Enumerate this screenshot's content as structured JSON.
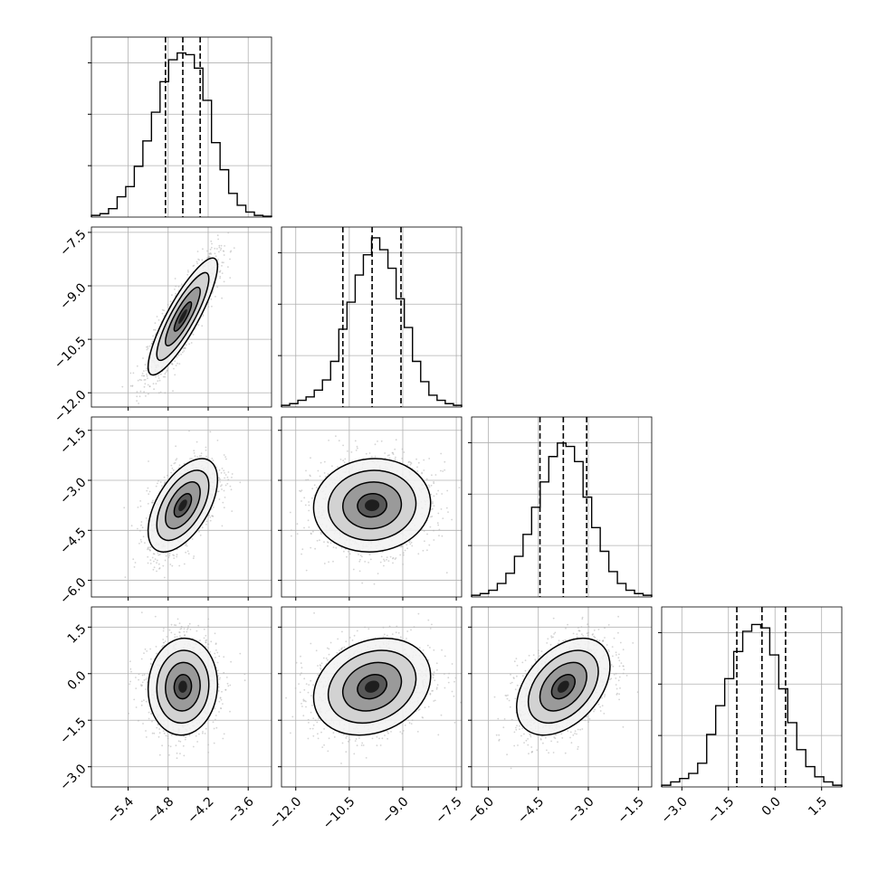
{
  "chart_data": {
    "type": "corner",
    "style": {
      "hist_color": "#000000",
      "scatter_color": "#b0b0b0",
      "contour_color": "#000000",
      "grid": true,
      "grid_color": "#b0b0b0",
      "quantile_line_style": "dashed"
    },
    "parameters": [
      {
        "index": 0,
        "range": [
          -5.95,
          -3.25
        ],
        "ticks": [
          -5.4,
          -4.8,
          -4.2,
          -3.6
        ],
        "tick_labels": [
          "−5.4",
          "−4.8",
          "−4.2",
          "−3.6"
        ],
        "quantiles": [
          -4.84,
          -4.58,
          -4.32
        ],
        "hist_bins": [
          0.01,
          0.02,
          0.05,
          0.12,
          0.18,
          0.3,
          0.45,
          0.62,
          0.8,
          0.93,
          0.97,
          0.96,
          0.88,
          0.69,
          0.44,
          0.28,
          0.14,
          0.07,
          0.03,
          0.01,
          0.005
        ]
      },
      {
        "index": 1,
        "range": [
          -12.4,
          -7.35
        ],
        "ticks": [
          -12.0,
          -10.5,
          -9.0,
          -7.5
        ],
        "tick_labels": [
          "−12.0",
          "−10.5",
          "−9.0",
          "−7.5"
        ],
        "quantiles": [
          -10.68,
          -9.86,
          -9.05
        ],
        "hist_bins": [
          0.01,
          0.02,
          0.04,
          0.06,
          0.1,
          0.16,
          0.27,
          0.46,
          0.62,
          0.78,
          0.9,
          1.0,
          0.93,
          0.82,
          0.64,
          0.47,
          0.27,
          0.15,
          0.07,
          0.04,
          0.02,
          0.01
        ]
      },
      {
        "index": 2,
        "range": [
          -6.5,
          -1.1
        ],
        "ticks": [
          -6.0,
          -4.5,
          -3.0,
          -1.5
        ],
        "tick_labels": [
          "−6.0",
          "−4.5",
          "−3.0",
          "−1.5"
        ],
        "quantiles": [
          -4.45,
          -3.75,
          -3.05
        ],
        "hist_bins": [
          0.01,
          0.02,
          0.04,
          0.08,
          0.14,
          0.24,
          0.37,
          0.53,
          0.68,
          0.83,
          0.91,
          0.89,
          0.8,
          0.59,
          0.41,
          0.27,
          0.15,
          0.08,
          0.04,
          0.02,
          0.01
        ]
      },
      {
        "index": 3,
        "range": [
          -3.65,
          2.15
        ],
        "ticks": [
          -3.0,
          -1.5,
          0.0,
          1.5
        ],
        "tick_labels": [
          "−3.0",
          "−1.5",
          "0.0",
          "1.5"
        ],
        "quantiles": [
          -1.23,
          -0.42,
          0.34
        ],
        "hist_bins": [
          0.01,
          0.03,
          0.05,
          0.08,
          0.14,
          0.31,
          0.48,
          0.64,
          0.8,
          0.92,
          0.96,
          0.94,
          0.78,
          0.58,
          0.38,
          0.22,
          0.12,
          0.06,
          0.03,
          0.01
        ]
      }
    ],
    "pairs": [
      {
        "x": 0,
        "y": 1,
        "mean": [
          -4.58,
          -9.86
        ],
        "sd": [
          0.26,
          0.82
        ],
        "rho": 0.86
      },
      {
        "x": 0,
        "y": 2,
        "mean": [
          -4.58,
          -3.75
        ],
        "sd": [
          0.26,
          0.7
        ],
        "rho": 0.55
      },
      {
        "x": 1,
        "y": 2,
        "mean": [
          -9.86,
          -3.75
        ],
        "sd": [
          0.82,
          0.7
        ],
        "rho": 0.05
      },
      {
        "x": 0,
        "y": 3,
        "mean": [
          -4.58,
          -0.42
        ],
        "sd": [
          0.26,
          0.78
        ],
        "rho": 0.05
      },
      {
        "x": 1,
        "y": 3,
        "mean": [
          -9.86,
          -0.42
        ],
        "sd": [
          0.82,
          0.78
        ],
        "rho": 0.22
      },
      {
        "x": 2,
        "y": 3,
        "mean": [
          -3.75,
          -0.42
        ],
        "sd": [
          0.7,
          0.78
        ],
        "rho": 0.42
      }
    ]
  }
}
